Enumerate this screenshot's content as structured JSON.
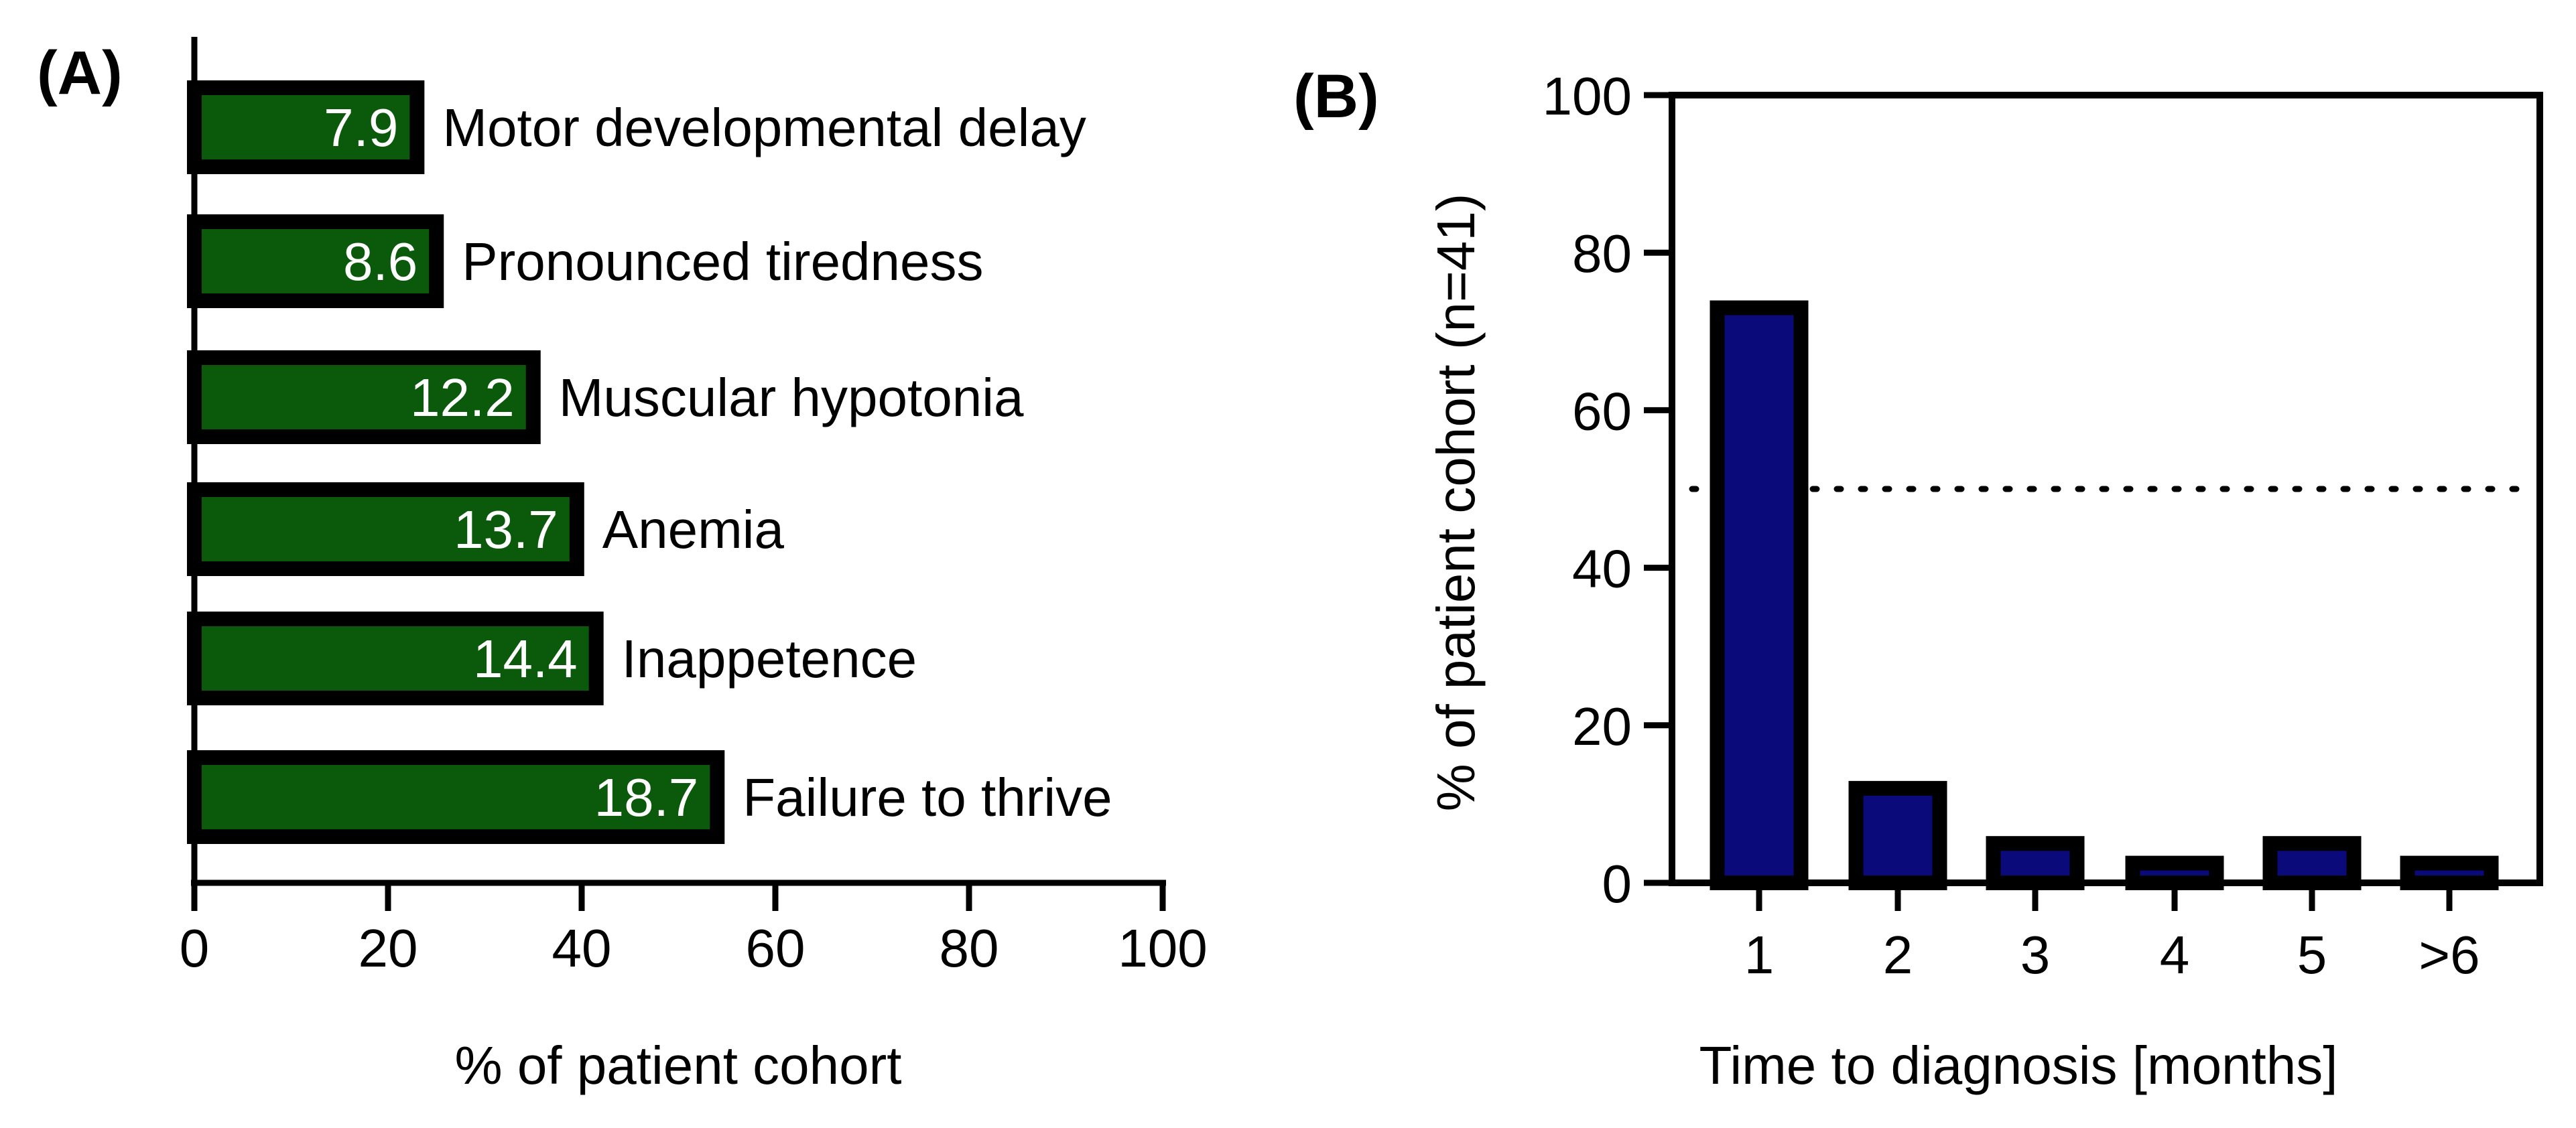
{
  "chart_data": [
    {
      "type": "bar",
      "orientation": "horizontal",
      "panel_label": "(A)",
      "categories": [
        "Motor developmental delay",
        "Pronounced tiredness",
        "Muscular hypotonia",
        "Anemia",
        "Inappetence",
        "Failure to thrive"
      ],
      "values": [
        23,
        25,
        35,
        39.5,
        41.5,
        54
      ],
      "data_labels": [
        "7.9",
        "8.6",
        "12.2",
        "13.7",
        "14.4",
        "18.7"
      ],
      "xlabel": "% of patient cohort",
      "xlim": [
        0,
        100
      ],
      "xticks": [
        "0",
        "20",
        "40",
        "60",
        "80",
        "100"
      ],
      "bar_color": "#0b5a0b",
      "edge_color": "#000000"
    },
    {
      "type": "bar",
      "orientation": "vertical",
      "panel_label": "(B)",
      "categories": [
        "1",
        "2",
        "3",
        "4",
        "5",
        ">6"
      ],
      "values": [
        73,
        12,
        5,
        2.5,
        5,
        2.5
      ],
      "xlabel": "Time to diagnosis [months]",
      "ylabel": "% of patient cohort (n=41)",
      "ylim": [
        0,
        100
      ],
      "yticks": [
        "0",
        "20",
        "40",
        "60",
        "80",
        "100"
      ],
      "reference_line": 50,
      "bar_color": "#0a0a7a",
      "edge_color": "#000000"
    }
  ]
}
